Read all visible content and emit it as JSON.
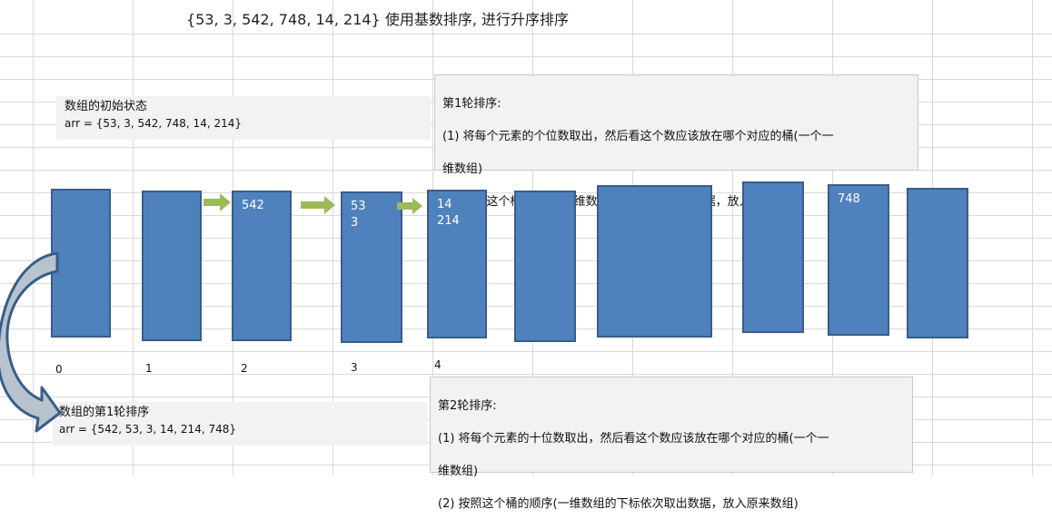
{
  "title": "{53, 3, 542, 748, 14, 214} 使用基数排序, 进行升序排序",
  "initial_state": {
    "heading": "数组的初始状态",
    "array": "arr = {53, 3, 542, 748, 14, 214}"
  },
  "round1_array": {
    "heading": "数组的第1轮排序",
    "array": "arr = {542, 53, 3, 14, 214, 748}"
  },
  "round1_note": {
    "heading": "第1轮排序:",
    "step1_line1": "(1) 将每个元素的个位数取出，然后看这个数应该放在哪个对应的桶(一个一",
    "step1_line2": "维数组)",
    "step2": "(2) 按照这个桶的顺序(一维数组的下标依次取出数据，放入原来数组)"
  },
  "round2_note": {
    "heading": "第2轮排序:",
    "step1_line1": "(1) 将每个元素的十位数取出，然后看这个数应该放在哪个对应的桶(一个一",
    "step1_line2": "维数组)",
    "step2": "(2) 按照这个桶的顺序(一维数组的下标依次取出数据，放入原来数组)"
  },
  "buckets": [
    {
      "index_label": "0",
      "values": []
    },
    {
      "index_label": "1",
      "values": []
    },
    {
      "index_label": "2",
      "values": [
        "542"
      ]
    },
    {
      "index_label": "3",
      "values": [
        "53",
        "3"
      ]
    },
    {
      "index_label": "4",
      "values": [
        "14",
        "214"
      ]
    },
    {
      "index_label": "",
      "values": []
    },
    {
      "index_label": "",
      "values": []
    },
    {
      "index_label": "",
      "values": []
    },
    {
      "index_label": "",
      "values": [
        "748"
      ]
    },
    {
      "index_label": "",
      "values": []
    }
  ],
  "colors": {
    "bucket_fill": "#4f81bd",
    "bucket_border": "#385d8a",
    "arrow_green": "#9bbb59",
    "curved_arrow_fill": "#b7c3cd",
    "curved_arrow_border": "#385d8a"
  }
}
